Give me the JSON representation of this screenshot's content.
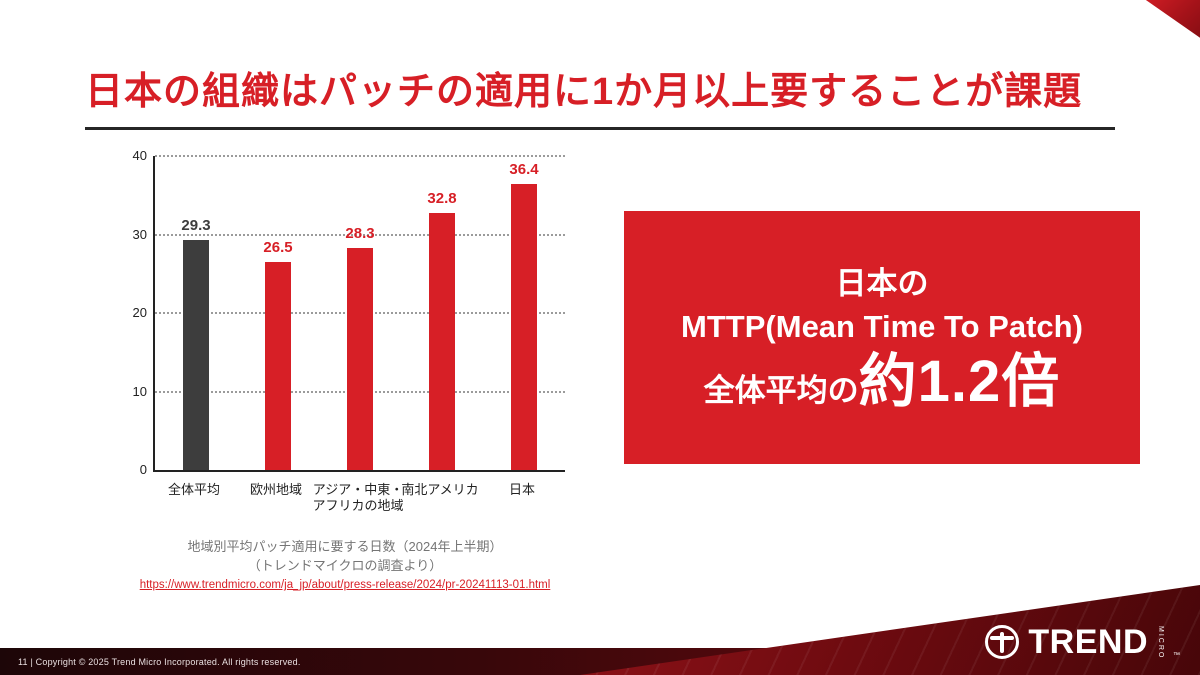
{
  "slide": {
    "title": "日本の組織はパッチの適用に1か月以上要することが課題"
  },
  "chart_data": {
    "type": "bar",
    "categories": [
      "全体平均",
      "欧州地域",
      "アジア・中東・\nアフリカの地域",
      "南北アメリカ",
      "日本"
    ],
    "values": [
      29.3,
      26.5,
      28.3,
      32.8,
      36.4
    ],
    "value_labels": [
      "29.3",
      "26.5",
      "28.3",
      "32.8",
      "36.4"
    ],
    "bar_colors": [
      "#3d3d3d",
      "#d71f26",
      "#d71f26",
      "#d71f26",
      "#d71f26"
    ],
    "title": "地域別平均パッチ適用に要する日数（2024年上半期）",
    "xlabel": "",
    "ylabel": "",
    "ylim": [
      0,
      40
    ],
    "yticks": [
      0,
      10,
      20,
      30,
      40
    ],
    "grid": "dotted-horizontal",
    "legend": "none"
  },
  "caption": {
    "line1": "地域別平均パッチ適用に要する日数（2024年上半期）",
    "line2": "（トレンドマイクロの調査より）",
    "link": "https://www.trendmicro.com/ja_jp/about/press-release/2024/pr-20241113-01.html"
  },
  "highlight": {
    "line1": "日本の",
    "line2": "MTTP(Mean Time To Patch)",
    "line3_prefix": "全体平均の",
    "line3_big": "約1.2倍"
  },
  "footer": {
    "copyright": "11 | Copyright © 2025 Trend Micro Incorporated. All rights reserved."
  },
  "logo": {
    "brand": "TREND",
    "sub": "MICRO",
    "tm": "™"
  },
  "colors": {
    "brand_red": "#d71f26",
    "gray_bar": "#3d3d3d",
    "rule_dark": "#262626"
  }
}
